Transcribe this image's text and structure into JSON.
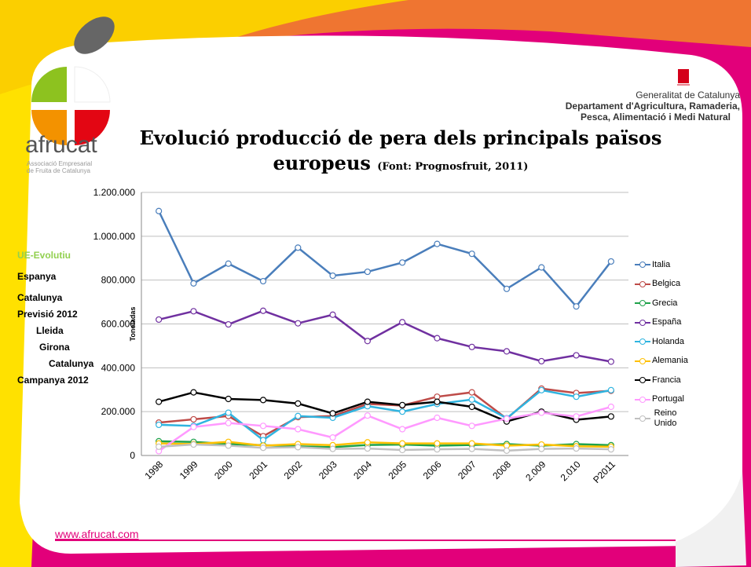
{
  "header": {
    "logo": "afrucat",
    "logo_sub": [
      "Associació Empresarial",
      "de Fruita de Catalunya"
    ],
    "gov": [
      "Generalitat de Catalunya",
      "Departament d'Agricultura, Ramaderia,",
      "Pesca, Alimentació i Medi Natural"
    ]
  },
  "menu": [
    "UE-Evolutiu",
    "Espanya",
    "Catalunya",
    "Previsió 2012",
    "Lleida",
    "Girona",
    "Catalunya",
    "Campanya 2012"
  ],
  "footer": {
    "link": "www.afrucat.com"
  },
  "chart_data": {
    "type": "line",
    "title": "Evolució producció de pera dels principals països europeus",
    "subtitle": "(Font: Prognosfruit, 2011)",
    "ylabel": "Toneladas",
    "categories": [
      "1998",
      "1999",
      "2000",
      "2001",
      "2002",
      "2003",
      "2004",
      "2005",
      "2006",
      "2007",
      "2008",
      "2.009",
      "2.010",
      "P2011"
    ],
    "ylim": [
      0,
      1200000
    ],
    "yticks": [
      0,
      {
        "value": 200000,
        "label": "200.000"
      },
      {
        "value": 400000,
        "label": "400.000"
      },
      {
        "value": 600000,
        "label": "600.000"
      },
      {
        "value": 800000,
        "label": "800.000"
      },
      {
        "value": 1000000,
        "label": "1.000.000"
      },
      {
        "value": 1200000,
        "label": "1.200.000"
      }
    ],
    "grid": true,
    "legend": "right",
    "series": [
      {
        "name": "Italia",
        "color": "#4a7ebb",
        "values": [
          1115000,
          785000,
          875000,
          795000,
          948000,
          820000,
          838000,
          880000,
          965000,
          920000,
          760000,
          858000,
          680000,
          885000
        ]
      },
      {
        "name": "Belgica",
        "color": "#be4b48",
        "values": [
          150000,
          165000,
          180000,
          88000,
          175000,
          180000,
          235000,
          228000,
          268000,
          288000,
          168000,
          305000,
          285000,
          295000
        ]
      },
      {
        "name": "Grecia",
        "color": "#1fa24a",
        "values": [
          65000,
          62000,
          52000,
          47000,
          42000,
          38000,
          48000,
          50000,
          45000,
          48000,
          52000,
          45000,
          52000,
          47000
        ]
      },
      {
        "name": "España",
        "color": "#7030a0",
        "values": [
          620000,
          658000,
          598000,
          660000,
          603000,
          642000,
          522000,
          608000,
          535000,
          495000,
          475000,
          430000,
          457000,
          428000
        ]
      },
      {
        "name": "Holanda",
        "color": "#2fb4e0",
        "values": [
          140000,
          135000,
          195000,
          70000,
          180000,
          172000,
          225000,
          200000,
          235000,
          255000,
          170000,
          298000,
          268000,
          298000
        ]
      },
      {
        "name": "Alemania",
        "color": "#ffc000",
        "values": [
          55000,
          52000,
          62000,
          45000,
          52000,
          47000,
          60000,
          55000,
          55000,
          55000,
          45000,
          50000,
          42000,
          40000
        ]
      },
      {
        "name": "Francia",
        "color": "#000000",
        "values": [
          245000,
          288000,
          258000,
          253000,
          237000,
          192000,
          245000,
          230000,
          245000,
          222000,
          155000,
          200000,
          163000,
          178000
        ]
      },
      {
        "name": "Portugal",
        "color": "#ff99ff",
        "values": [
          20000,
          130000,
          148000,
          135000,
          120000,
          82000,
          182000,
          120000,
          172000,
          135000,
          168000,
          195000,
          178000,
          222000
        ]
      },
      {
        "name": "Reino Unido",
        "color": "#c0c0c0",
        "values": [
          40000,
          50000,
          45000,
          35000,
          38000,
          30000,
          32000,
          25000,
          28000,
          30000,
          22000,
          30000,
          32000,
          28000
        ]
      }
    ]
  }
}
